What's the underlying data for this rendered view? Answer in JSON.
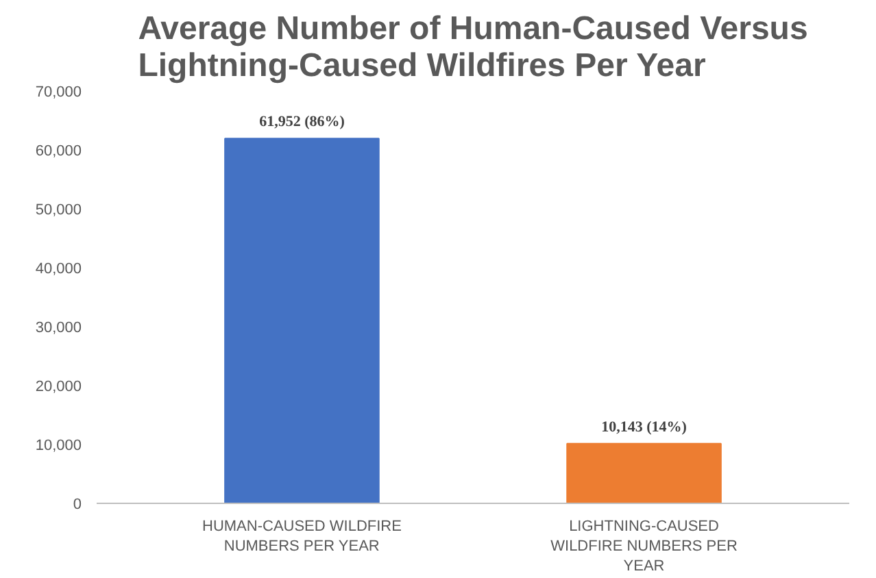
{
  "chart_data": {
    "type": "bar",
    "title": "Average Number of Human-Caused Versus Lightning-Caused Wildfires Per Year",
    "categories": [
      "HUMAN-CAUSED WILDFIRE NUMBERS PER YEAR",
      "LIGHTNING-CAUSED WILDFIRE NUMBERS PER YEAR"
    ],
    "values": [
      61952,
      10143
    ],
    "colors": [
      "#4472c4",
      "#ed7d31"
    ],
    "value_labels": [
      "61,952 (86%)",
      "10,143 (14%)"
    ],
    "ylim": [
      0,
      70000
    ],
    "yticks": [
      {
        "value": 0,
        "label": "0"
      },
      {
        "value": 10000,
        "label": "10,000"
      },
      {
        "value": 20000,
        "label": "20,000"
      },
      {
        "value": 30000,
        "label": "30,000"
      },
      {
        "value": 40000,
        "label": "40,000"
      },
      {
        "value": 50000,
        "label": "50,000"
      },
      {
        "value": 60000,
        "label": "60,000"
      },
      {
        "value": 70000,
        "label": "70,000"
      }
    ],
    "grid": false
  }
}
